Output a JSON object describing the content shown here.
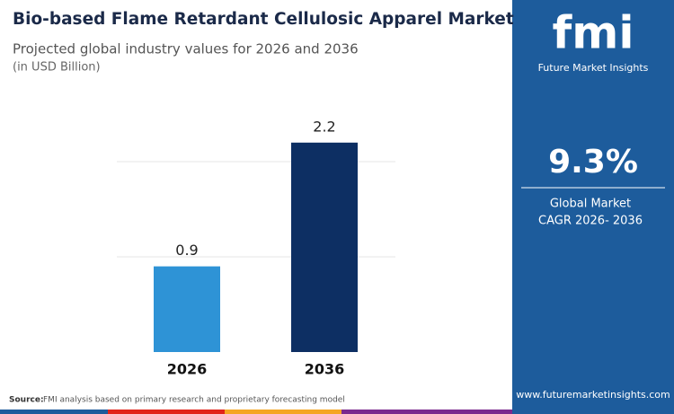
{
  "chart_data": {
    "type": "bar",
    "title": "Bio-based Flame Retardant Cellulosic Apparel Market",
    "subtitle": "Projected global industry values for 2026 and 2036",
    "unit_note": "(in USD Billion)",
    "categories": [
      "2026",
      "2036"
    ],
    "values": [
      0.9,
      2.2
    ],
    "colors": [
      "#2e93d6",
      "#0d2f63"
    ],
    "ylim": [
      0,
      2.5
    ],
    "yticks": [
      1,
      2
    ],
    "grid": true,
    "source_label": "Source:",
    "source": "FMI analysis based on primary research and proprietary forecasting model"
  },
  "panel": {
    "logo": "fmi",
    "brand": "Future Market Insights",
    "cagr": "9.3%",
    "cagr_caption_1": "Global Market",
    "cagr_caption_2": "CAGR 2026- 2036",
    "website": "www.futuremarketinsights.com"
  }
}
